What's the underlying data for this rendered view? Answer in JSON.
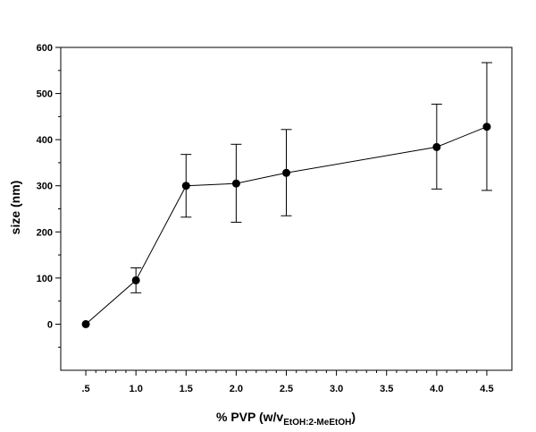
{
  "chart_data": {
    "type": "line",
    "title": "",
    "xlabel": {
      "main": "% PVP (w/v",
      "subscript": "EtOH:2-MeEtOH",
      "close": ")"
    },
    "ylabel": "size (nm)",
    "xlim": [
      0.25,
      4.75
    ],
    "ylim": [
      -100,
      600
    ],
    "x_ticks": [
      0.5,
      1.0,
      1.5,
      2.0,
      2.5,
      3.0,
      3.5,
      4.0,
      4.5
    ],
    "x_tick_labels": [
      ".5",
      "1.0",
      "1.5",
      "2.0",
      "2.5",
      "3.0",
      "3.5",
      "4.0",
      "4.5"
    ],
    "y_ticks": [
      0,
      100,
      200,
      300,
      400,
      500,
      600
    ],
    "y_tick_labels": [
      "0",
      "100",
      "200",
      "300",
      "400",
      "500",
      "600"
    ],
    "grid": false,
    "series": [
      {
        "color": "#000000",
        "points": [
          {
            "x": 0.5,
            "y": 0,
            "err_low": 0,
            "err_high": 0
          },
          {
            "x": 1.0,
            "y": 95,
            "err_low": 68,
            "err_high": 122
          },
          {
            "x": 1.5,
            "y": 300,
            "err_low": 232,
            "err_high": 368
          },
          {
            "x": 2.0,
            "y": 305,
            "err_low": 221,
            "err_high": 390
          },
          {
            "x": 2.5,
            "y": 328,
            "err_low": 235,
            "err_high": 422
          },
          {
            "x": 4.0,
            "y": 384,
            "err_low": 293,
            "err_high": 477
          },
          {
            "x": 4.5,
            "y": 428,
            "err_low": 290,
            "err_high": 567
          }
        ]
      }
    ]
  }
}
